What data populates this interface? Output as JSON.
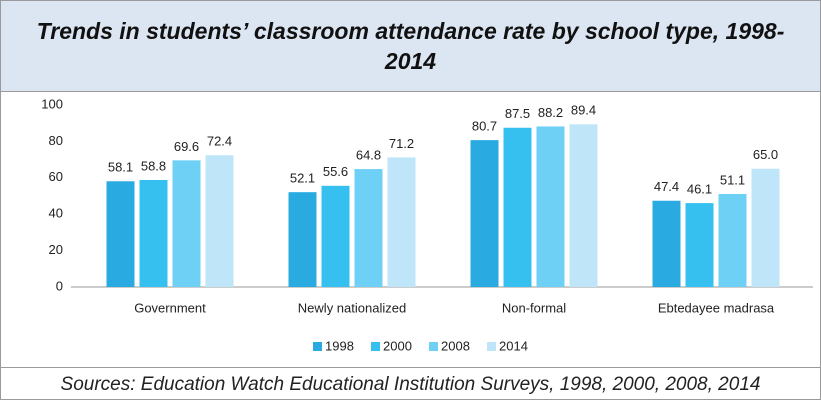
{
  "chart_data": {
    "type": "bar",
    "title": "Trends in students’ classroom attendance rate by school type, 1998-2014",
    "source": "Sources: Education Watch Educational Institution Surveys, 1998, 2000, 2008, 2014",
    "categories": [
      "Government",
      "Newly nationalized",
      "Non-formal",
      "Ebtedayee madrasa"
    ],
    "series": [
      {
        "name": "1998",
        "color": "#29abe2",
        "values": [
          58.1,
          52.1,
          80.7,
          47.4
        ],
        "value_labels": [
          "58.1",
          "52.1",
          "80.7",
          "47.4"
        ]
      },
      {
        "name": "2000",
        "color": "#35c0f0",
        "values": [
          58.8,
          55.6,
          87.5,
          46.1
        ],
        "value_labels": [
          "58.8",
          "55.6",
          "87.5",
          "46.1"
        ]
      },
      {
        "name": "2008",
        "color": "#6fd0f6",
        "values": [
          69.6,
          64.8,
          88.2,
          51.1
        ],
        "value_labels": [
          "69.6",
          "64.8",
          "88.2",
          "51.1"
        ]
      },
      {
        "name": "2014",
        "color": "#bfe6f8",
        "values": [
          72.4,
          71.2,
          89.4,
          65.0
        ],
        "value_labels": [
          "72.4",
          "71.2",
          "89.4",
          "65.0"
        ]
      }
    ],
    "ylim": [
      0,
      100
    ],
    "yticks": [
      0,
      20,
      40,
      60,
      80,
      100
    ],
    "grid": false,
    "legend": "bottom"
  }
}
